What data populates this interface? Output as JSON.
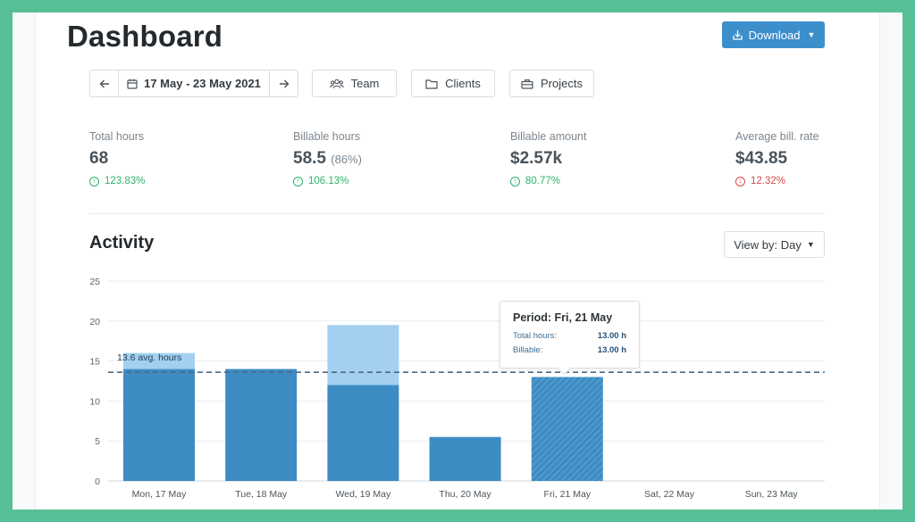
{
  "header": {
    "title": "Dashboard",
    "download_label": "Download"
  },
  "toolbar": {
    "date_range": "17 May - 23 May 2021",
    "filters": [
      {
        "label": "Team",
        "icon": "team-icon"
      },
      {
        "label": "Clients",
        "icon": "folder-icon"
      },
      {
        "label": "Projects",
        "icon": "briefcase-icon"
      }
    ]
  },
  "stats": [
    {
      "label": "Total hours",
      "value": "68",
      "extra": "",
      "change": "123.83%",
      "direction": "up"
    },
    {
      "label": "Billable hours",
      "value": "58.5",
      "extra": "(86%)",
      "change": "106.13%",
      "direction": "up"
    },
    {
      "label": "Billable amount",
      "value": "$2.57k",
      "extra": "",
      "change": "80.77%",
      "direction": "up"
    },
    {
      "label": "Average bill. rate",
      "value": "$43.85",
      "extra": "",
      "change": "12.32%",
      "direction": "down"
    }
  ],
  "activity": {
    "title": "Activity",
    "view_by_label": "View by: Day"
  },
  "tooltip": {
    "title": "Period: Fri, 21 May",
    "rows": [
      {
        "key": "Total hours:",
        "value": "13.00 h"
      },
      {
        "key": "Billable:",
        "value": "13.00 h"
      }
    ]
  },
  "colors": {
    "accent": "#3d8fcc",
    "billable": "#3d8cc4",
    "non_billable": "#a3d0f0",
    "up": "#2fb36a",
    "down": "#d94848"
  },
  "chart_data": {
    "type": "bar",
    "categories": [
      "Mon, 17 May",
      "Tue, 18 May",
      "Wed, 19 May",
      "Thu, 20 May",
      "Fri, 21 May",
      "Sat, 22 May",
      "Sun, 23 May"
    ],
    "series": [
      {
        "values": [
          14,
          14,
          12,
          5.5,
          13,
          0,
          0
        ]
      },
      {
        "values": [
          2,
          0,
          7.5,
          0,
          0,
          0,
          0
        ]
      }
    ],
    "yticks": [
      0,
      5,
      10,
      15,
      20,
      25
    ],
    "ylim": [
      0,
      25
    ],
    "average": {
      "value": 13.6,
      "label": "13.6 avg. hours"
    },
    "highlighted_category": "Fri, 21 May",
    "grid": true
  }
}
